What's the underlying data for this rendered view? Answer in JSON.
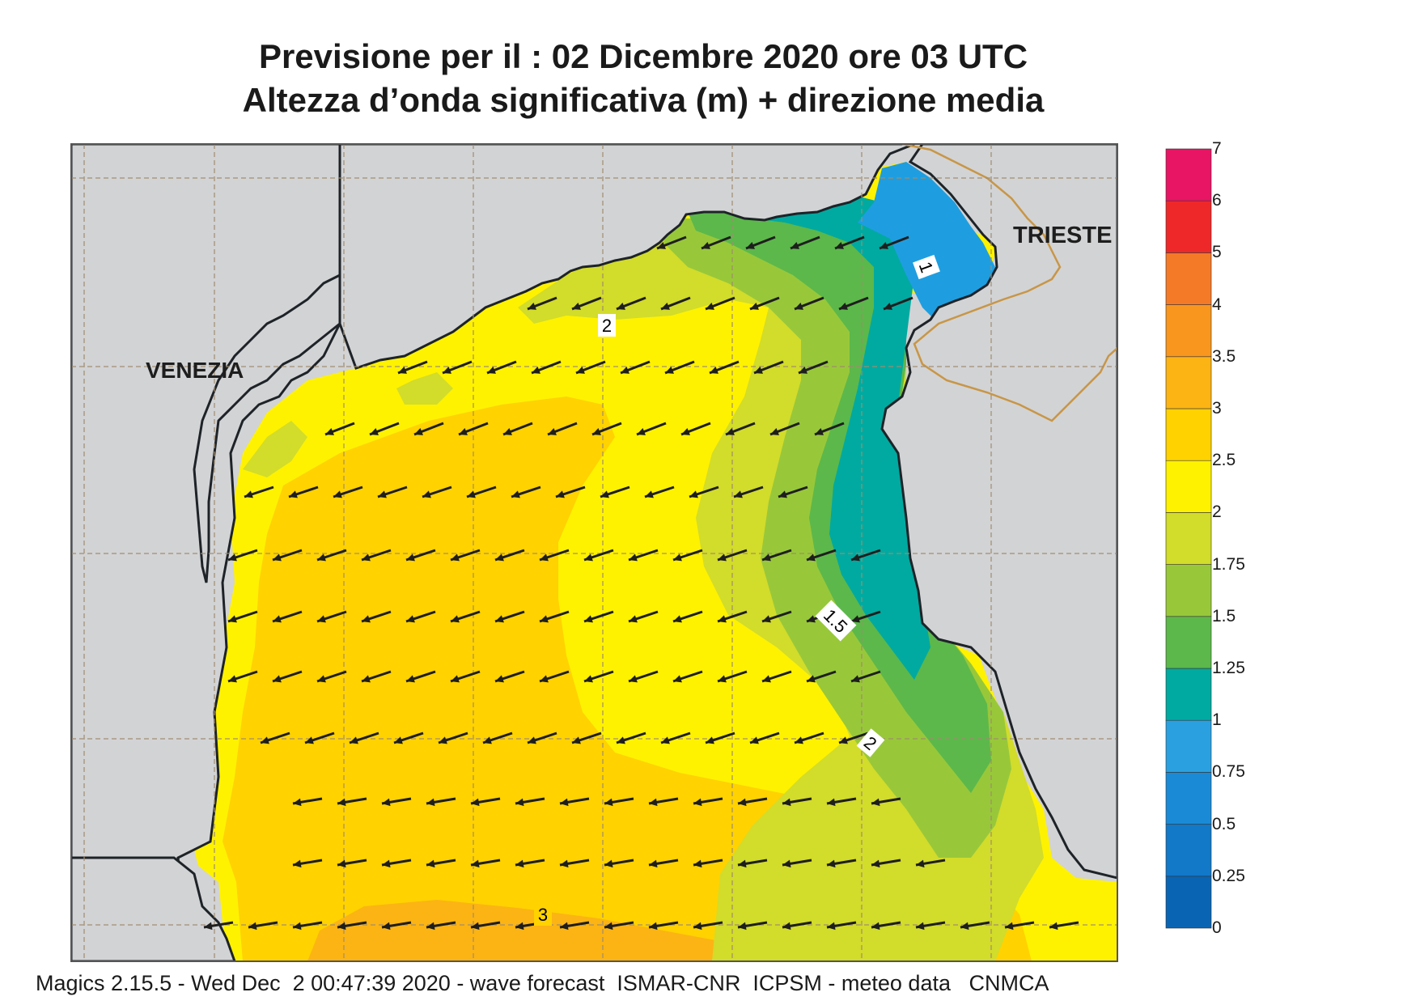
{
  "title_line1": "Previsione per il  :  02 Dicembre  2020   ore 03 UTC",
  "title_line2": "Altezza d’onda significativa (m) + direzione media",
  "place_labels": {
    "venezia": "VENEZIA",
    "trieste": "TRIESTE"
  },
  "contour_labels": {
    "c1": "1",
    "c2_north": "2",
    "c15": "1.5",
    "c2_south": "2",
    "c3": "3"
  },
  "colorbar": {
    "ticks": [
      "0",
      "0.25",
      "0.5",
      "0.75",
      "1",
      "1.25",
      "1.5",
      "1.75",
      "2",
      "2.5",
      "3",
      "3.5",
      "4",
      "5",
      "6",
      "7"
    ],
    "colors": [
      "#0a64b4",
      "#1278c8",
      "#1a8ad6",
      "#2aa0e0",
      "#00aaa0",
      "#5cb84a",
      "#98c83a",
      "#d2dc2a",
      "#fff200",
      "#ffd200",
      "#fcb414",
      "#f8961e",
      "#f47a28",
      "#ee2828",
      "#e81464"
    ]
  },
  "colors": {
    "land": "#d2d3d5",
    "coast": "#1e2328",
    "grid": "#a08c6e",
    "border": "#c89646",
    "sea_2_25": "#fff200",
    "sea_25_3": "#ffd200",
    "sea_3_35": "#fcb414",
    "sea_175_2": "#d2dc2a",
    "sea_15_175": "#98c83a",
    "sea_125_15": "#5cb84a",
    "sea_1_125": "#00aaa0",
    "sea_075_1": "#1e9ee0",
    "arrow": "#1e1e1e"
  },
  "footer": "Magics 2.15.5 - Wed Dec  2 00:47:39 2020 - wave forecast  ISMAR-CNR  ICPSM - meteo data   CNMCA"
}
